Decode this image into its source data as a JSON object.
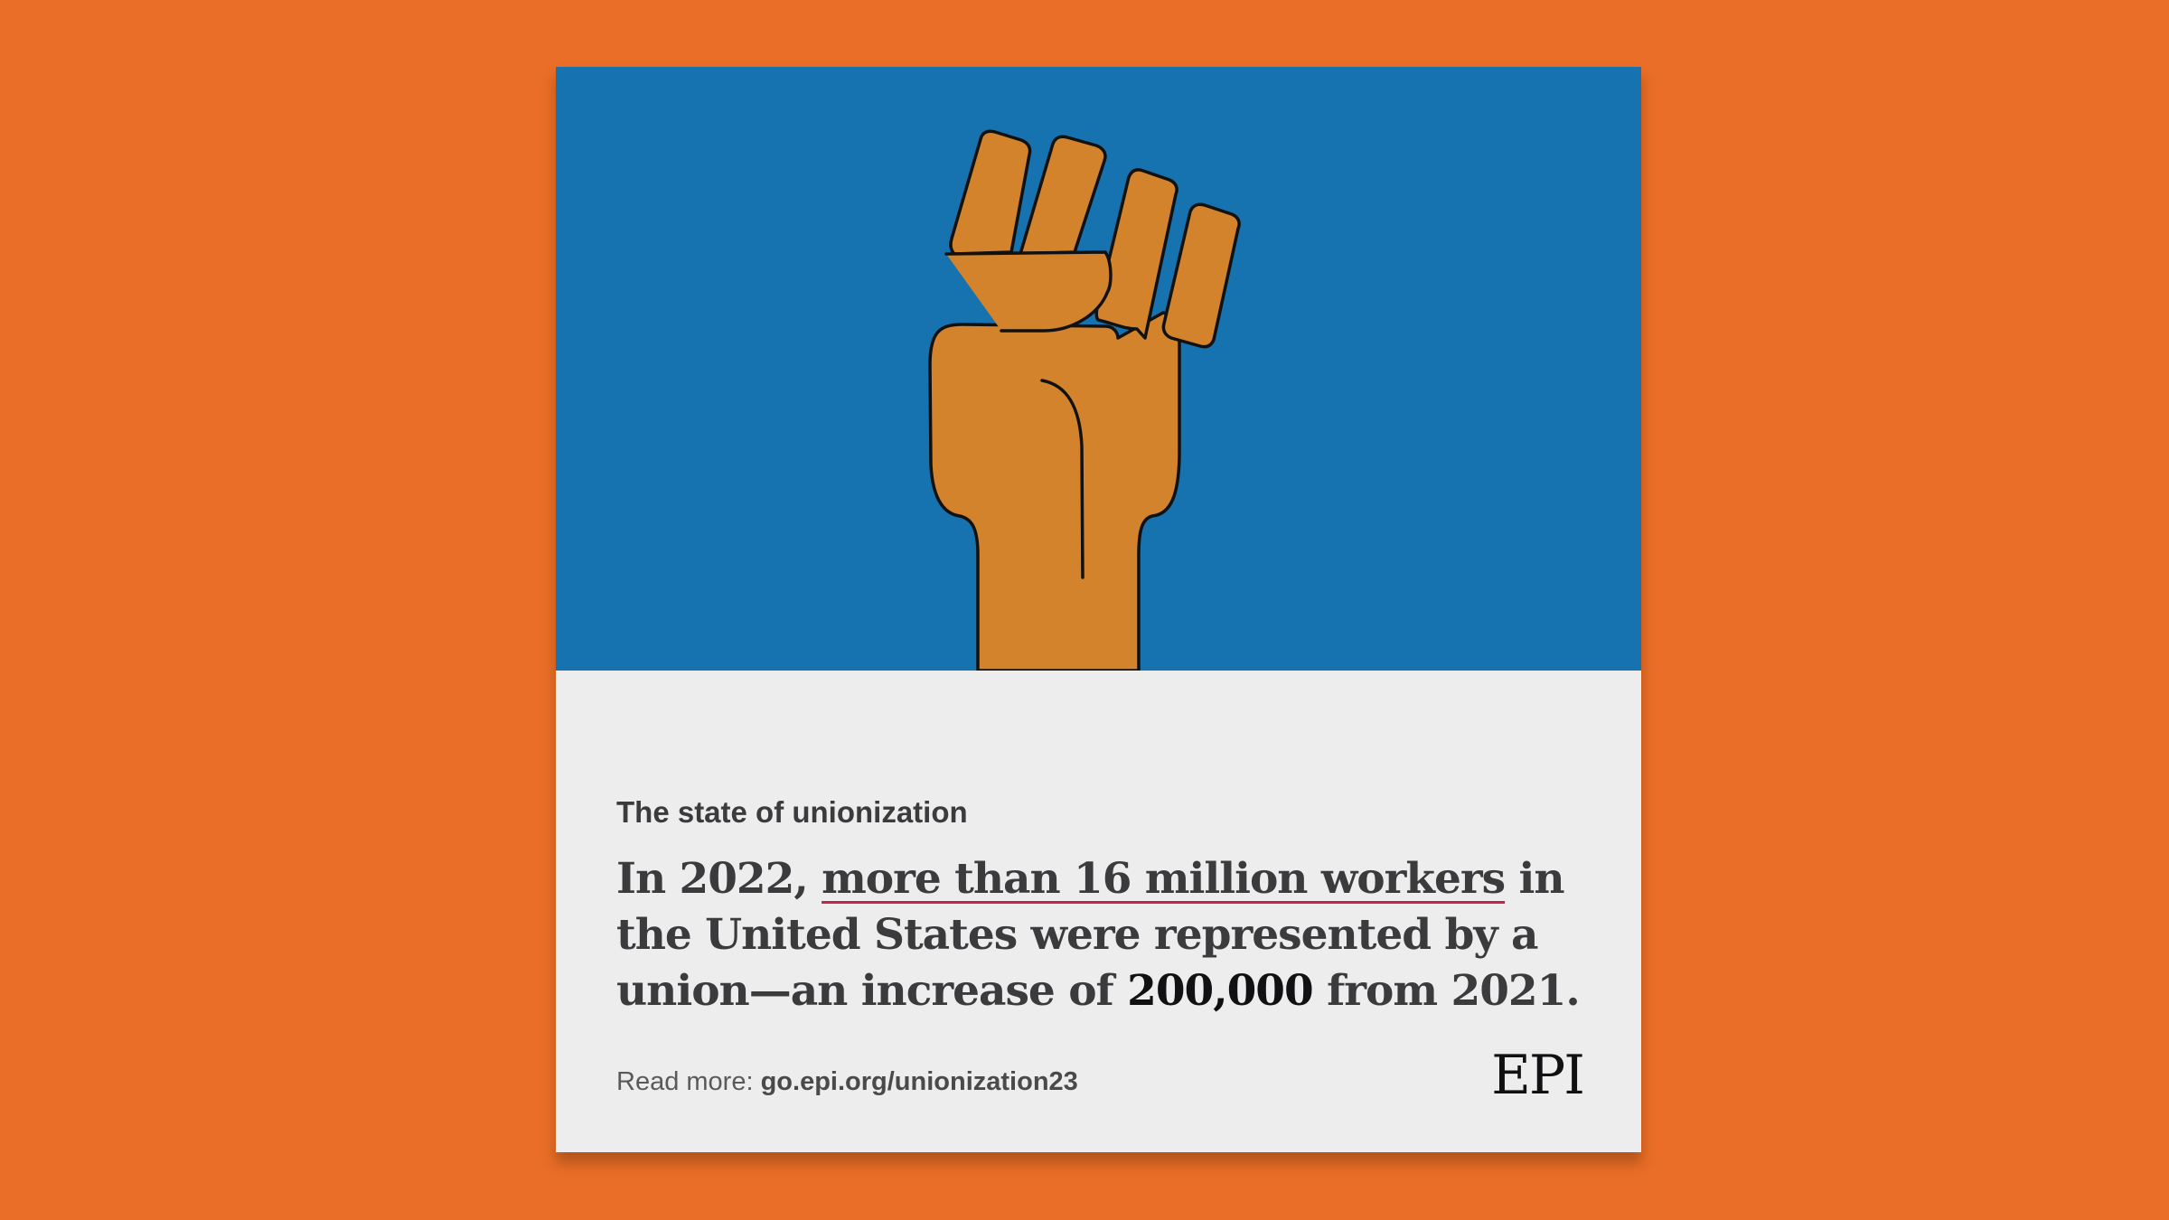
{
  "colors": {
    "page_background": "#ea6e27",
    "illustration_background": "#1673b0",
    "card_background": "#ededed",
    "fist_fill": "#d3832c",
    "outline": "#111111",
    "text": "#3b3b3e",
    "underline_accent": "#c8244b"
  },
  "illustration": {
    "icon": "raised-fist-icon"
  },
  "card": {
    "eyebrow": "The state of unionization",
    "headline": {
      "intro": "In 2022, ",
      "highlight": "more than 16 million workers",
      "middle": " in the United States were represented by a union—an increase of ",
      "number": "200,000",
      "end": " from 2021."
    },
    "read_more_label": "Read more: ",
    "read_more_link": "go.epi.org/unionization23",
    "logo": "EPI"
  }
}
